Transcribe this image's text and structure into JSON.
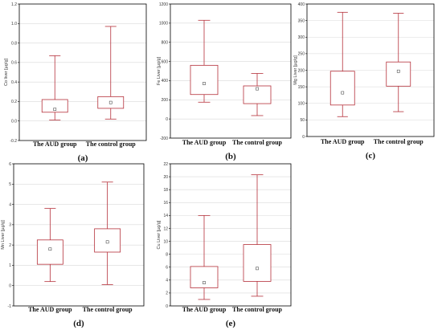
{
  "chart_data": [
    {
      "type": "box",
      "panel_label": "(a)",
      "ylabel": "Co liver [µg/g]",
      "ylim": [
        -0.2,
        1.2
      ],
      "yticks": [
        "-0.2",
        "0.0",
        "0.2",
        "0.4",
        "0.6",
        "0.8",
        "1.0",
        "1.2"
      ],
      "categories": [
        "The AUD group",
        "The control group"
      ],
      "boxes": [
        {
          "min": 0.01,
          "q1": 0.09,
          "median": 0.12,
          "q3": 0.22,
          "max": 0.67
        },
        {
          "min": 0.02,
          "q1": 0.13,
          "median": 0.19,
          "q3": 0.25,
          "max": 0.97
        }
      ],
      "grid": true
    },
    {
      "type": "box",
      "panel_label": "(b)",
      "ylabel": "Fe Liver [µg/g]",
      "ylim": [
        -200,
        1200
      ],
      "yticks": [
        "-200",
        "0",
        "200",
        "400",
        "600",
        "800",
        "1000",
        "1200"
      ],
      "categories": [
        "The AUD group",
        "The control group"
      ],
      "boxes": [
        {
          "min": 175,
          "q1": 255,
          "median": 370,
          "q3": 560,
          "max": 1030
        },
        {
          "min": 35,
          "q1": 160,
          "median": 315,
          "q3": 345,
          "max": 475
        }
      ],
      "grid": true
    },
    {
      "type": "box",
      "panel_label": "(c)",
      "ylabel": "Mg Liver [µg/g]",
      "ylim": [
        0,
        400
      ],
      "yticks": [
        "0",
        "50",
        "100",
        "150",
        "200",
        "250",
        "300",
        "350",
        "400"
      ],
      "categories": [
        "The AUD group",
        "The control group"
      ],
      "boxes": [
        {
          "min": 60,
          "q1": 95,
          "median": 132,
          "q3": 197,
          "max": 375
        },
        {
          "min": 75,
          "q1": 152,
          "median": 197,
          "q3": 225,
          "max": 372
        }
      ],
      "grid": true
    },
    {
      "type": "box",
      "panel_label": "(d)",
      "ylabel": "Mn Liver [µg/g]",
      "ylim": [
        -1,
        6
      ],
      "yticks": [
        "-1",
        "0",
        "1",
        "2",
        "3",
        "4",
        "5",
        "6"
      ],
      "categories": [
        "The AUD group",
        "The control group"
      ],
      "boxes": [
        {
          "min": 0.2,
          "q1": 1.05,
          "median": 1.8,
          "q3": 2.25,
          "max": 3.8
        },
        {
          "min": 0.05,
          "q1": 1.65,
          "median": 2.15,
          "q3": 2.8,
          "max": 5.1
        }
      ],
      "grid": true
    },
    {
      "type": "box",
      "panel_label": "(e)",
      "ylabel": "Cu Liver [µg/g]",
      "ylim": [
        0,
        22
      ],
      "yticks": [
        "0",
        "2",
        "4",
        "6",
        "8",
        "10",
        "12",
        "14",
        "16",
        "18",
        "20",
        "22"
      ],
      "categories": [
        "The AUD group",
        "The control group"
      ],
      "boxes": [
        {
          "min": 1.0,
          "q1": 2.8,
          "median": 3.6,
          "q3": 6.1,
          "max": 14.0
        },
        {
          "min": 1.5,
          "q1": 3.8,
          "median": 5.8,
          "q3": 9.5,
          "max": 20.3
        }
      ],
      "grid": true
    }
  ],
  "colors": {
    "box": "#b5303a",
    "grid": "#d9d9d9",
    "frame": "#000000",
    "text": "#111111"
  }
}
